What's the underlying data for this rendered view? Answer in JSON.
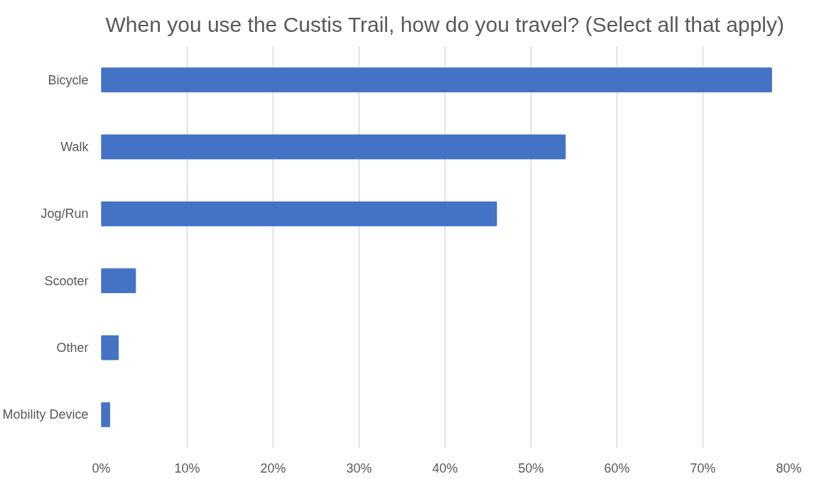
{
  "chart_data": {
    "type": "bar",
    "orientation": "horizontal",
    "title": "When you use the Custis Trail, how do you travel? (Select all that apply)",
    "categories": [
      "Bicycle",
      "Walk",
      "Jog/Run",
      "Scooter",
      "Other",
      "Mobility Device"
    ],
    "values": [
      78,
      54,
      46,
      4,
      2,
      1
    ],
    "color": "#4472c4",
    "xlim": [
      0,
      80
    ],
    "xticks": [
      {
        "value": 0,
        "label": "0%"
      },
      {
        "value": 10,
        "label": "10%"
      },
      {
        "value": 20,
        "label": "20%"
      },
      {
        "value": 30,
        "label": "30%"
      },
      {
        "value": 40,
        "label": "40%"
      },
      {
        "value": 50,
        "label": "50%"
      },
      {
        "value": 60,
        "label": "60%"
      },
      {
        "value": 70,
        "label": "70%"
      },
      {
        "value": 80,
        "label": "80%"
      }
    ],
    "grid": "x"
  }
}
